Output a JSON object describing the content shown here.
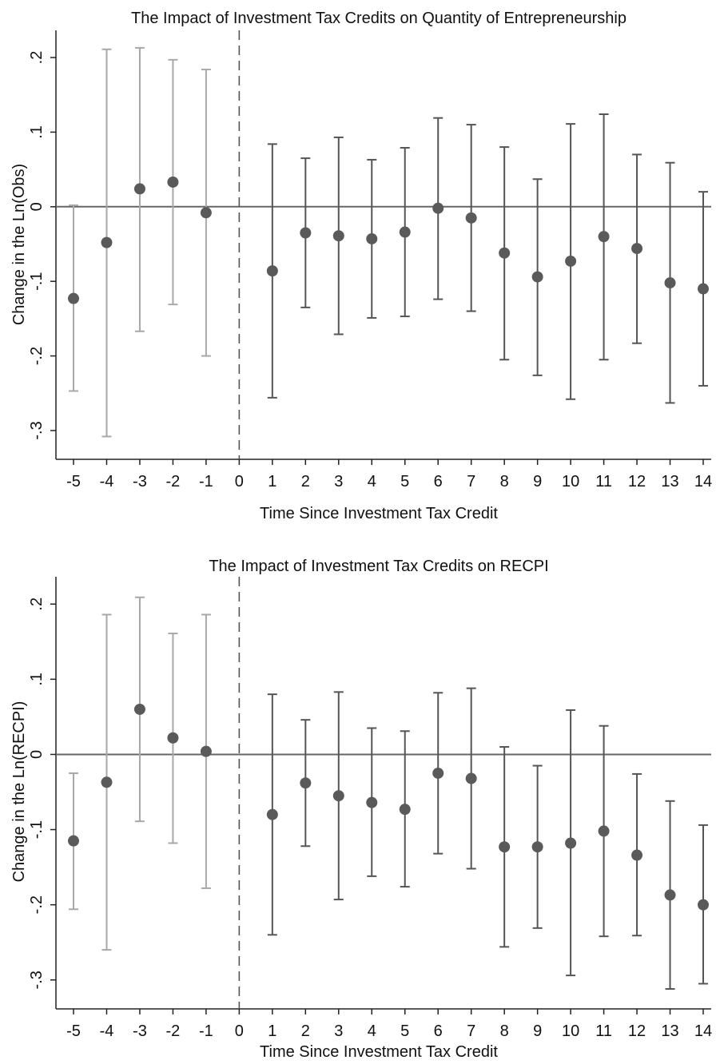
{
  "chart_data": [
    {
      "type": "scatter",
      "title": "The Impact of Investment Tax Credits on Quantity of Entrepreneurship",
      "xlabel": "Time Since Investment Tax Credit",
      "ylabel": "Change in the Ln(Obs)",
      "x_ticks": [
        "-5",
        "-4",
        "-3",
        "-2",
        "-1",
        "0",
        "1",
        "2",
        "3",
        "4",
        "5",
        "6",
        "7",
        "8",
        "9",
        "10",
        "11",
        "12",
        "13",
        "14"
      ],
      "y_ticks": [
        ".2",
        ".1",
        "0",
        "-.1",
        "-.2",
        "-.3"
      ],
      "xlim": [
        -5,
        14
      ],
      "ylim": [
        -0.33,
        0.23
      ],
      "vertical_reference": 0,
      "horizontal_reference": 0,
      "pre_period_color": "#a8a8a8",
      "post_period_color": "#555555",
      "points": [
        {
          "x": -5,
          "y": -0.123,
          "lo": -0.247,
          "hi": 0.002
        },
        {
          "x": -4,
          "y": -0.048,
          "lo": -0.308,
          "hi": 0.211
        },
        {
          "x": -3,
          "y": 0.024,
          "lo": -0.167,
          "hi": 0.213
        },
        {
          "x": -2,
          "y": 0.033,
          "lo": -0.131,
          "hi": 0.197
        },
        {
          "x": -1,
          "y": -0.008,
          "lo": -0.2,
          "hi": 0.184
        },
        {
          "x": 1,
          "y": -0.086,
          "lo": -0.256,
          "hi": 0.084
        },
        {
          "x": 2,
          "y": -0.035,
          "lo": -0.135,
          "hi": 0.065
        },
        {
          "x": 3,
          "y": -0.039,
          "lo": -0.171,
          "hi": 0.093
        },
        {
          "x": 4,
          "y": -0.043,
          "lo": -0.149,
          "hi": 0.063
        },
        {
          "x": 5,
          "y": -0.034,
          "lo": -0.147,
          "hi": 0.079
        },
        {
          "x": 6,
          "y": -0.002,
          "lo": -0.124,
          "hi": 0.119
        },
        {
          "x": 7,
          "y": -0.015,
          "lo": -0.14,
          "hi": 0.11
        },
        {
          "x": 8,
          "y": -0.062,
          "lo": -0.205,
          "hi": 0.08
        },
        {
          "x": 9,
          "y": -0.094,
          "lo": -0.226,
          "hi": 0.037
        },
        {
          "x": 10,
          "y": -0.073,
          "lo": -0.258,
          "hi": 0.111
        },
        {
          "x": 11,
          "y": -0.04,
          "lo": -0.205,
          "hi": 0.124
        },
        {
          "x": 12,
          "y": -0.056,
          "lo": -0.183,
          "hi": 0.07
        },
        {
          "x": 13,
          "y": -0.102,
          "lo": -0.263,
          "hi": 0.059
        },
        {
          "x": 14,
          "y": -0.11,
          "lo": -0.24,
          "hi": 0.02
        }
      ]
    },
    {
      "type": "scatter",
      "title": "The Impact of Investment Tax Credits on RECPI",
      "xlabel": "Time Since Investment Tax Credit",
      "ylabel": "Change in the Ln(RECPI)",
      "x_ticks": [
        "-5",
        "-4",
        "-3",
        "-2",
        "-1",
        "0",
        "1",
        "2",
        "3",
        "4",
        "5",
        "6",
        "7",
        "8",
        "9",
        "10",
        "11",
        "12",
        "13",
        "14"
      ],
      "y_ticks": [
        ".2",
        ".1",
        "0",
        "-.1",
        "-.2",
        "-.3"
      ],
      "xlim": [
        -5,
        14
      ],
      "ylim": [
        -0.33,
        0.23
      ],
      "vertical_reference": 0,
      "horizontal_reference": 0,
      "pre_period_color": "#a8a8a8",
      "post_period_color": "#555555",
      "points": [
        {
          "x": -5,
          "y": -0.115,
          "lo": -0.206,
          "hi": -0.025
        },
        {
          "x": -4,
          "y": -0.037,
          "lo": -0.26,
          "hi": 0.186
        },
        {
          "x": -3,
          "y": 0.06,
          "lo": -0.089,
          "hi": 0.209
        },
        {
          "x": -2,
          "y": 0.022,
          "lo": -0.118,
          "hi": 0.161
        },
        {
          "x": -1,
          "y": 0.004,
          "lo": -0.178,
          "hi": 0.186
        },
        {
          "x": 1,
          "y": -0.08,
          "lo": -0.24,
          "hi": 0.08
        },
        {
          "x": 2,
          "y": -0.038,
          "lo": -0.122,
          "hi": 0.046
        },
        {
          "x": 3,
          "y": -0.055,
          "lo": -0.193,
          "hi": 0.083
        },
        {
          "x": 4,
          "y": -0.064,
          "lo": -0.162,
          "hi": 0.035
        },
        {
          "x": 5,
          "y": -0.073,
          "lo": -0.176,
          "hi": 0.031
        },
        {
          "x": 6,
          "y": -0.025,
          "lo": -0.132,
          "hi": 0.082
        },
        {
          "x": 7,
          "y": -0.032,
          "lo": -0.152,
          "hi": 0.088
        },
        {
          "x": 8,
          "y": -0.123,
          "lo": -0.256,
          "hi": 0.01
        },
        {
          "x": 9,
          "y": -0.123,
          "lo": -0.231,
          "hi": -0.015
        },
        {
          "x": 10,
          "y": -0.118,
          "lo": -0.294,
          "hi": 0.059
        },
        {
          "x": 11,
          "y": -0.102,
          "lo": -0.242,
          "hi": 0.038
        },
        {
          "x": 12,
          "y": -0.134,
          "lo": -0.241,
          "hi": -0.026
        },
        {
          "x": 13,
          "y": -0.187,
          "lo": -0.312,
          "hi": -0.062
        },
        {
          "x": 14,
          "y": -0.2,
          "lo": -0.305,
          "hi": -0.094
        }
      ]
    }
  ]
}
